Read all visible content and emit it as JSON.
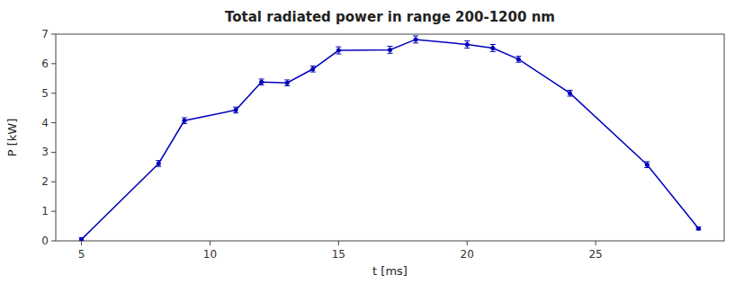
{
  "chart_data": {
    "type": "line",
    "title": "Total radiated power in range 200-1200 nm",
    "xlabel": "t [ms]",
    "ylabel": "P [kW]",
    "x": [
      5,
      8,
      9,
      11,
      12,
      13,
      14,
      15,
      17,
      18,
      20,
      21,
      22,
      24,
      27,
      29
    ],
    "values": [
      0.05,
      2.62,
      4.07,
      4.43,
      5.38,
      5.35,
      5.82,
      6.45,
      6.47,
      6.82,
      6.65,
      6.53,
      6.15,
      5.0,
      2.58,
      0.42
    ],
    "errors": [
      0.05,
      0.1,
      0.1,
      0.1,
      0.1,
      0.1,
      0.1,
      0.12,
      0.12,
      0.12,
      0.12,
      0.12,
      0.1,
      0.1,
      0.1,
      0.05
    ],
    "color": "#0000BB",
    "marker": "circle",
    "xlim": [
      4,
      30
    ],
    "ylim": [
      0,
      7
    ],
    "xticks": [
      5,
      10,
      15,
      20,
      25
    ],
    "yticks": [
      0,
      1,
      2,
      3,
      4,
      5,
      6,
      7
    ],
    "grid": false
  }
}
